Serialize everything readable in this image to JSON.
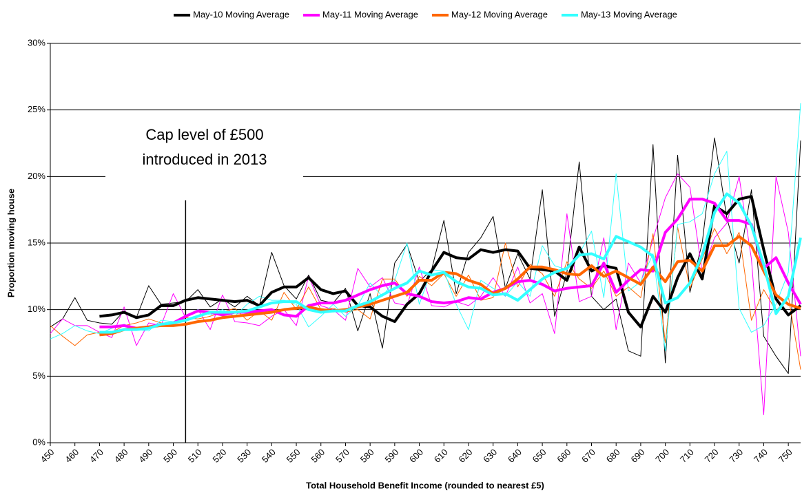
{
  "chart_data": {
    "type": "line",
    "x_label": "Total Household Benefit Income (rounded to nearest £5)",
    "y_label": "Proportion moving house",
    "annotation": {
      "lines": [
        "Cap level of £500",
        "introduced in 2013"
      ],
      "x": 505
    },
    "grid": true,
    "legend": "top",
    "xlim": [
      450,
      755
    ],
    "xticks": [
      450,
      460,
      470,
      480,
      490,
      500,
      510,
      520,
      530,
      540,
      550,
      560,
      570,
      580,
      590,
      600,
      610,
      620,
      630,
      640,
      650,
      660,
      670,
      680,
      690,
      700,
      710,
      720,
      730,
      740,
      750
    ],
    "ylim": [
      0,
      30
    ],
    "yticks": [
      {
        "value": 0,
        "label": "0%"
      },
      {
        "value": 5,
        "label": "5%"
      },
      {
        "value": 10,
        "label": "10%"
      },
      {
        "value": 15,
        "label": "15%"
      },
      {
        "value": 20,
        "label": "20%"
      },
      {
        "value": 25,
        "label": "25%"
      },
      {
        "value": 30,
        "label": "30%"
      }
    ],
    "x": [
      450,
      455,
      460,
      465,
      470,
      475,
      480,
      485,
      490,
      495,
      500,
      505,
      510,
      515,
      520,
      525,
      530,
      535,
      540,
      545,
      550,
      555,
      560,
      565,
      570,
      575,
      580,
      585,
      590,
      595,
      600,
      605,
      610,
      615,
      620,
      625,
      630,
      635,
      640,
      645,
      650,
      655,
      660,
      665,
      670,
      675,
      680,
      685,
      690,
      695,
      700,
      705,
      710,
      715,
      720,
      725,
      730,
      735,
      740,
      745,
      750,
      755
    ],
    "series": [
      {
        "color": "#000000",
        "width": 1,
        "values": [
          8.7,
          9.3,
          10.9,
          9.2,
          9.0,
          8.9,
          9.9,
          9.4,
          11.8,
          10.4,
          10.5,
          10.6,
          11.5,
          10.2,
          10.8,
          10.2,
          11.0,
          10.3,
          14.3,
          11.8,
          10.8,
          12.6,
          10.7,
          10.5,
          11.6,
          8.4,
          11.2,
          7.1,
          13.5,
          14.9,
          12.1,
          13.0,
          16.7,
          11.2,
          14.3,
          15.4,
          17.0,
          11.6,
          14.2,
          12.3,
          19.0,
          9.5,
          12.8,
          21.1,
          11.0,
          10.0,
          10.8,
          6.9,
          6.5,
          22.4,
          6.0,
          21.6,
          11.3,
          15.0,
          22.9,
          16.9,
          13.5,
          19.0,
          8.0,
          6.5,
          5.2,
          22.7
        ]
      },
      {
        "color": "#ff00ff",
        "width": 1,
        "values": [
          8.2,
          9.3,
          8.8,
          8.8,
          8.3,
          7.9,
          10.2,
          7.3,
          9.0,
          8.8,
          11.2,
          9.4,
          10.0,
          8.5,
          11.1,
          9.1,
          9.0,
          8.8,
          9.5,
          10.0,
          8.8,
          12.5,
          10.3,
          10.0,
          9.2,
          13.1,
          11.7,
          12.4,
          10.5,
          10.3,
          13.2,
          10.3,
          10.2,
          10.6,
          10.3,
          11.0,
          12.4,
          11.0,
          13.2,
          10.5,
          11.2,
          8.2,
          17.2,
          10.6,
          11.0,
          15.4,
          8.5,
          13.5,
          12.0,
          15.3,
          18.4,
          20.2,
          19.2,
          12.8,
          15.4,
          16.5,
          20.0,
          13.8,
          2.1,
          20.0,
          15.8,
          6.5
        ]
      },
      {
        "color": "#ff6600",
        "width": 1,
        "values": [
          8.8,
          8.0,
          7.3,
          8.1,
          8.3,
          8.3,
          8.8,
          9.0,
          9.3,
          9.0,
          8.9,
          9.4,
          9.3,
          9.5,
          9.8,
          10.1,
          9.2,
          9.9,
          9.2,
          11.3,
          10.0,
          11.7,
          10.0,
          10.1,
          9.8,
          10.0,
          9.3,
          12.3,
          12.3,
          11.0,
          12.5,
          11.8,
          12.7,
          11.0,
          12.6,
          10.7,
          10.9,
          15.0,
          11.7,
          13.4,
          12.7,
          11.0,
          13.6,
          12.3,
          11.6,
          12.9,
          11.0,
          11.7,
          10.9,
          15.7,
          7.5,
          16.2,
          11.6,
          13.8,
          16.1,
          14.2,
          15.8,
          9.2,
          11.5,
          9.9,
          11.0,
          5.5
        ]
      },
      {
        "color": "#33ffff",
        "width": 1,
        "values": [
          7.8,
          8.2,
          8.8,
          8.4,
          8.2,
          8.6,
          8.9,
          8.5,
          8.4,
          9.2,
          9.1,
          9.5,
          10.0,
          9.6,
          10.0,
          9.5,
          10.4,
          11.0,
          10.7,
          10.7,
          10.4,
          8.7,
          9.5,
          10.4,
          9.5,
          10.3,
          12.0,
          11.0,
          12.2,
          15.0,
          10.4,
          13.0,
          12.9,
          10.4,
          8.5,
          12.2,
          11.6,
          11.0,
          12.1,
          11.0,
          14.8,
          13.3,
          13.0,
          14.2,
          15.9,
          10.9,
          20.2,
          11.4,
          12.1,
          14.2,
          6.9,
          16.4,
          16.6,
          17.2,
          20.2,
          21.9,
          10.1,
          8.3,
          8.8,
          10.4,
          12.8,
          25.5
        ]
      },
      {
        "name": "May-10 Moving Average",
        "color": "#000000",
        "width": 4,
        "values": [
          null,
          null,
          null,
          null,
          9.5,
          9.6,
          9.8,
          9.4,
          9.6,
          10.3,
          10.3,
          10.7,
          10.9,
          10.8,
          10.7,
          10.6,
          10.7,
          10.3,
          11.3,
          11.7,
          11.7,
          12.4,
          11.5,
          11.2,
          11.4,
          10.3,
          10.2,
          9.5,
          9.1,
          10.4,
          11.2,
          12.9,
          14.3,
          13.9,
          13.8,
          14.5,
          14.3,
          14.5,
          14.4,
          13.1,
          13.0,
          12.9,
          12.2,
          14.7,
          12.9,
          13.3,
          13.1,
          9.8,
          8.7,
          11.0,
          9.8,
          12.4,
          14.2,
          12.3,
          17.8,
          17.2,
          18.3,
          18.5,
          14.5,
          10.8,
          9.6,
          10.3
        ]
      },
      {
        "name": "May-11 Moving Average",
        "color": "#ff00ff",
        "width": 4,
        "values": [
          null,
          null,
          null,
          null,
          8.7,
          8.7,
          8.8,
          8.6,
          8.7,
          8.9,
          9.0,
          9.5,
          9.9,
          9.8,
          9.6,
          9.8,
          9.8,
          9.9,
          10.0,
          9.6,
          9.5,
          10.3,
          10.5,
          10.5,
          10.7,
          11.1,
          11.5,
          11.8,
          12.0,
          11.2,
          11.0,
          10.6,
          10.5,
          10.6,
          10.9,
          10.8,
          11.3,
          11.6,
          12.1,
          12.2,
          11.9,
          11.4,
          11.6,
          11.7,
          11.8,
          13.5,
          11.3,
          12.2,
          13.0,
          12.9,
          15.8,
          16.8,
          18.3,
          18.3,
          18.0,
          16.7,
          16.7,
          16.4,
          13.1,
          13.9,
          12.0,
          10.4
        ]
      },
      {
        "name": "May-12 Moving Average",
        "color": "#ff6600",
        "width": 4,
        "values": [
          null,
          null,
          null,
          null,
          8.1,
          8.2,
          8.5,
          8.6,
          8.7,
          8.8,
          8.8,
          8.9,
          9.1,
          9.2,
          9.4,
          9.5,
          9.6,
          9.7,
          9.8,
          10.0,
          10.1,
          10.2,
          10.0,
          9.9,
          10.0,
          10.2,
          10.4,
          10.7,
          11.0,
          11.3,
          12.2,
          12.2,
          12.8,
          12.7,
          12.2,
          11.9,
          11.2,
          11.6,
          12.3,
          13.2,
          13.2,
          13.0,
          12.7,
          12.6,
          13.3,
          12.5,
          12.9,
          12.4,
          11.9,
          13.2,
          12.1,
          13.6,
          13.7,
          12.9,
          14.8,
          14.8,
          15.5,
          14.8,
          12.9,
          11.1,
          10.4,
          10.1
        ]
      },
      {
        "name": "May-13 Moving Average",
        "color": "#33ffff",
        "width": 4,
        "values": [
          null,
          null,
          null,
          null,
          8.3,
          8.3,
          8.5,
          8.5,
          8.6,
          8.9,
          9.0,
          9.2,
          9.5,
          9.8,
          9.8,
          9.8,
          9.9,
          10.2,
          10.5,
          10.6,
          10.6,
          10.0,
          9.8,
          9.9,
          9.9,
          10.3,
          10.6,
          11.1,
          11.6,
          12.0,
          12.9,
          12.6,
          12.8,
          12.1,
          11.7,
          11.6,
          11.1,
          11.2,
          10.7,
          11.5,
          12.3,
          12.8,
          13.1,
          14.1,
          14.2,
          13.8,
          15.5,
          15.1,
          14.7,
          14.0,
          10.5,
          10.9,
          12.0,
          14.1,
          17.3,
          18.7,
          18.0,
          16.3,
          13.4,
          9.7,
          11.0,
          15.4
        ]
      }
    ]
  }
}
